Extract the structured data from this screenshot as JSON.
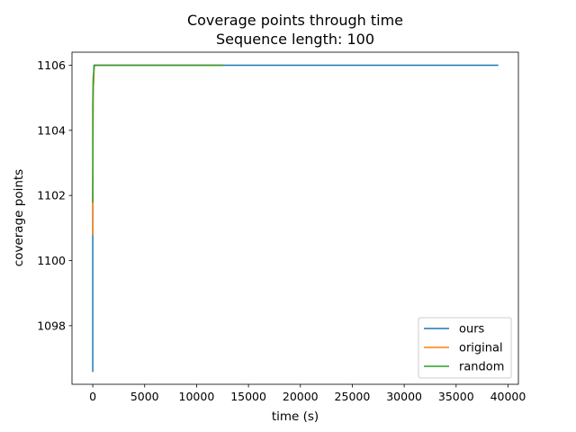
{
  "chart_data": {
    "type": "line",
    "title": "Coverage points through time",
    "subtitle": "Sequence length: 100",
    "xlabel": "time (s)",
    "ylabel": "coverage points",
    "xlim": [
      -2000,
      41000
    ],
    "ylim": [
      1096.2,
      1106.4
    ],
    "xticks": [
      0,
      5000,
      10000,
      15000,
      20000,
      25000,
      30000,
      35000,
      40000
    ],
    "yticks": [
      1098,
      1100,
      1102,
      1104,
      1106
    ],
    "grid": false,
    "legend_position": "lower right",
    "series": [
      {
        "name": "ours",
        "color": "#1f77b4",
        "x": [
          0,
          0,
          30,
          120,
          300,
          1000,
          39000
        ],
        "y": [
          1096.6,
          1100.8,
          1105.0,
          1106.0,
          1106.0,
          1106.0,
          1106.0
        ]
      },
      {
        "name": "original",
        "color": "#ff7f0e",
        "x": [
          0,
          0,
          40,
          150,
          400,
          1000,
          12500
        ],
        "y": [
          1100.8,
          1101.8,
          1105.2,
          1106.0,
          1106.0,
          1106.0,
          1106.0
        ]
      },
      {
        "name": "random",
        "color": "#2ca02c",
        "x": [
          0,
          0,
          40,
          150,
          400,
          1000,
          12500
        ],
        "y": [
          1101.8,
          1104.8,
          1105.6,
          1106.0,
          1106.0,
          1106.0,
          1106.0
        ]
      }
    ]
  }
}
